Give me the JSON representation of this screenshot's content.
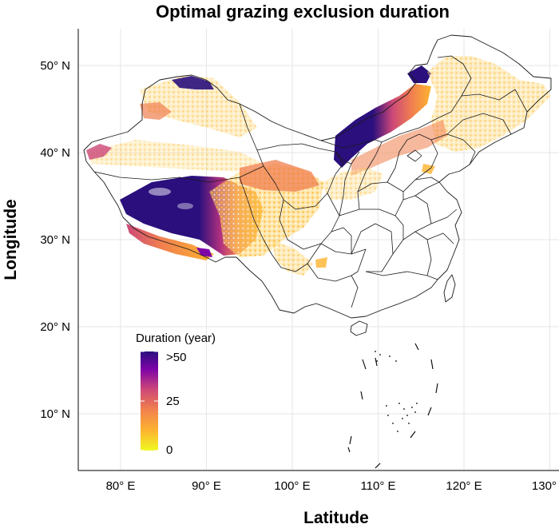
{
  "title": "Optimal grazing exclusion duration",
  "x_axis_label": "Latitude",
  "y_axis_label": "Longitude",
  "x_ticks": [
    {
      "value": 80,
      "label": "80° E"
    },
    {
      "value": 90,
      "label": "90° E"
    },
    {
      "value": 100,
      "label": "100° E"
    },
    {
      "value": 110,
      "label": "110° E"
    },
    {
      "value": 120,
      "label": "120° E"
    },
    {
      "value": 130,
      "label": "130° E"
    }
  ],
  "y_ticks": [
    {
      "value": 50,
      "label": "50° N"
    },
    {
      "value": 40,
      "label": "40° N"
    },
    {
      "value": 30,
      "label": "30° N"
    },
    {
      "value": 20,
      "label": "20° N"
    },
    {
      "value": 10,
      "label": "10° N"
    }
  ],
  "legend": {
    "title": "Duration (year)",
    "labels": [
      {
        "value": 50,
        "label": ">50"
      },
      {
        "value": 25,
        "label": "25"
      },
      {
        "value": 0,
        "label": "0"
      }
    ],
    "min": 0,
    "max": 50
  },
  "colors": {
    "low": "#f0f921",
    "mid_low": "#fdb42f",
    "mid": "#f07f4f",
    "mid_high": "#cc4778",
    "high_mid": "#7e03a8",
    "high": "#2a0f7d",
    "boundary": "#1a1a1a"
  },
  "extent": {
    "lon_min": 73.5,
    "lon_max": 135.5,
    "lat_min": 3,
    "lat_max": 54
  }
}
